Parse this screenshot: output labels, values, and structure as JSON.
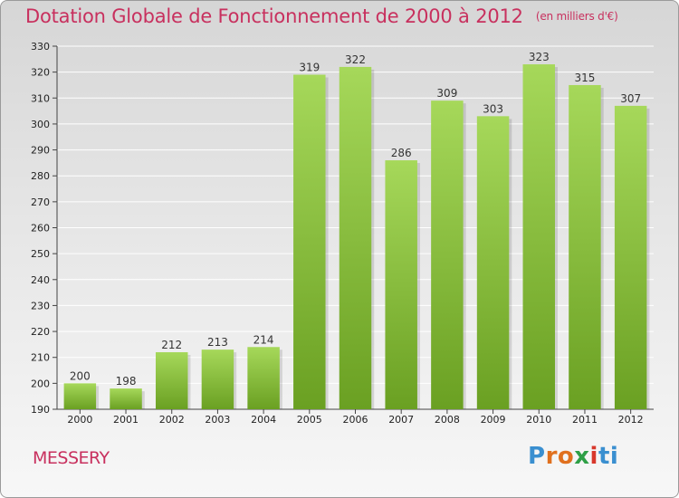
{
  "title": "Dotation Globale de Fonctionnement de 2000 à 2012",
  "subtitle": "(en milliers d'€)",
  "commune": "MESSERY",
  "logo_letters": [
    "P",
    "r",
    "o",
    "x",
    "i",
    "ti"
  ],
  "colors": {
    "title": "#c8305e",
    "bar_light": "#a6d85a",
    "bar_dark": "#6aa022",
    "grid": "#ffffff"
  },
  "chart_data": {
    "type": "bar",
    "categories": [
      "2000",
      "2001",
      "2002",
      "2003",
      "2004",
      "2005",
      "2006",
      "2007",
      "2008",
      "2009",
      "2010",
      "2011",
      "2012"
    ],
    "values": [
      200,
      198,
      212,
      213,
      214,
      319,
      322,
      286,
      309,
      303,
      323,
      315,
      307
    ],
    "ylim": [
      190,
      330
    ],
    "yticks": [
      190,
      200,
      210,
      220,
      230,
      240,
      250,
      260,
      270,
      280,
      290,
      300,
      310,
      320,
      330
    ],
    "grid": true,
    "title": "Dotation Globale de Fonctionnement de 2000 à 2012",
    "subtitle": "(en milliers d'€)"
  }
}
